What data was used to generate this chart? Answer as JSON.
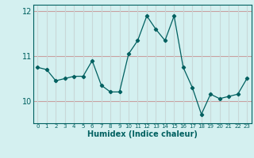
{
  "x": [
    0,
    1,
    2,
    3,
    4,
    5,
    6,
    7,
    8,
    9,
    10,
    11,
    12,
    13,
    14,
    15,
    16,
    17,
    18,
    19,
    20,
    21,
    22,
    23
  ],
  "y": [
    10.75,
    10.7,
    10.45,
    10.5,
    10.55,
    10.55,
    10.9,
    10.35,
    10.2,
    10.2,
    11.05,
    11.35,
    11.9,
    11.6,
    11.35,
    11.9,
    10.75,
    10.3,
    9.7,
    10.15,
    10.05,
    10.1,
    10.15,
    10.5
  ],
  "line_color": "#006060",
  "marker": "D",
  "marker_size": 2.2,
  "bg_color": "#d4f0f0",
  "grid_color_h": "#c8a0a0",
  "grid_color_v": "#c8d8d8",
  "xlabel": "Humidex (Indice chaleur)",
  "ylim": [
    9.5,
    12.15
  ],
  "yticks": [
    10,
    11,
    12
  ],
  "xlim": [
    -0.5,
    23.5
  ],
  "xlabel_fontsize": 7,
  "ytick_fontsize": 7,
  "xtick_fontsize": 5
}
